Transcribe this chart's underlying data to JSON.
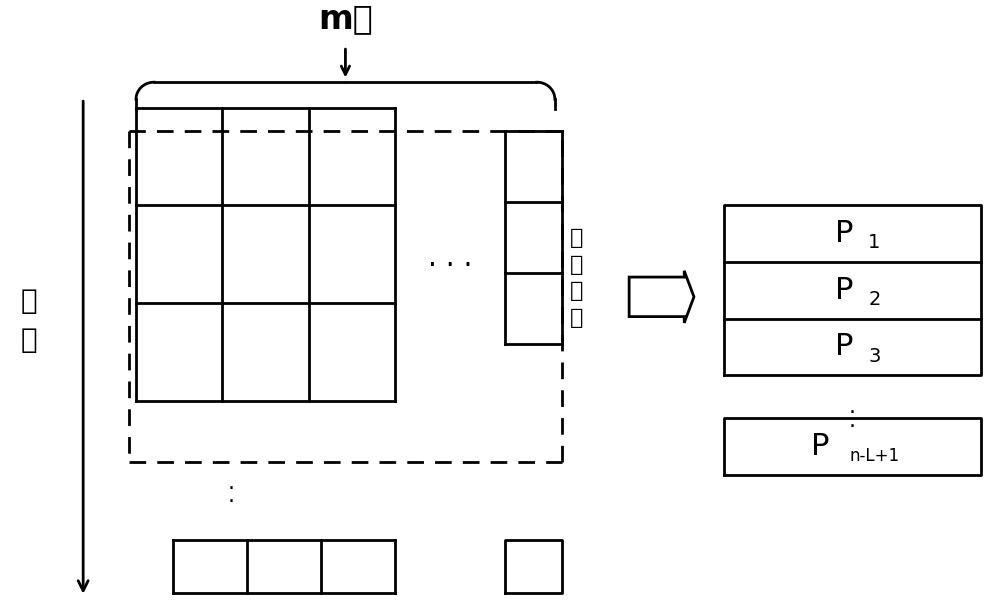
{
  "bg_color": "#ffffff",
  "text_color": "#000000",
  "title": "m维",
  "ylabel": "时\n间",
  "sliding_window_label": "滑\n动\n窗\n口",
  "font_size_title": 24,
  "font_size_label": 20,
  "font_size_p": 22,
  "font_size_sub": 14,
  "font_size_sliding": 16,
  "lw": 2.0
}
